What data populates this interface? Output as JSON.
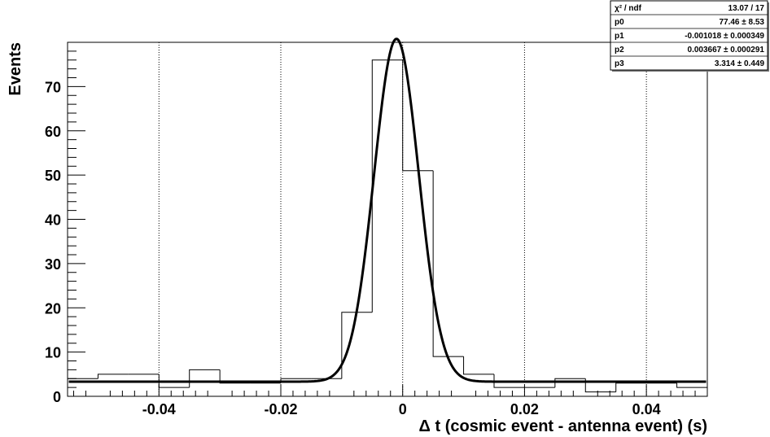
{
  "chart_data": {
    "type": "bar",
    "xlabel": "Δ t   (cosmic event - antenna event) (s)",
    "ylabel": "Events",
    "xlim": [
      -0.055,
      0.05
    ],
    "ylim": [
      0,
      80
    ],
    "grid_x": true,
    "grid_y": false,
    "x_ticks": [
      -0.04,
      -0.02,
      0,
      0.02,
      0.04
    ],
    "x_tick_labels": [
      "-0.04",
      "-0.02",
      "0",
      "0.02",
      "0.04"
    ],
    "y_ticks": [
      0,
      10,
      20,
      30,
      40,
      50,
      60,
      70
    ],
    "y_tick_labels": [
      "0",
      "10",
      "20",
      "30",
      "40",
      "50",
      "60",
      "70"
    ],
    "histogram": {
      "bin_edges": [
        -0.055,
        -0.05,
        -0.045,
        -0.04,
        -0.035,
        -0.03,
        -0.025,
        -0.02,
        -0.015,
        -0.01,
        -0.005,
        0,
        0.005,
        0.01,
        0.015,
        0.02,
        0.025,
        0.03,
        0.035,
        0.04,
        0.045,
        0.05
      ],
      "counts": [
        4,
        5,
        5,
        2,
        6,
        3,
        3,
        4,
        4,
        19,
        76,
        51,
        9,
        5,
        2,
        2,
        4,
        1,
        3,
        3,
        2
      ]
    },
    "fit": {
      "function": "gaussian+constant",
      "p0": 77.46,
      "p1": -0.001018,
      "p2": 0.003667,
      "p3": 3.314
    },
    "stats_box": {
      "rows": [
        {
          "label": "χ² / ndf",
          "value": "13.07 / 17"
        },
        {
          "label": "p0",
          "value": "77.46 ± 8.53"
        },
        {
          "label": "p1",
          "value": "-0.001018 ± 0.000349"
        },
        {
          "label": "p2",
          "value": "0.003667 ± 0.000291"
        },
        {
          "label": "p3",
          "value": "3.314 ± 0.449"
        }
      ]
    }
  }
}
